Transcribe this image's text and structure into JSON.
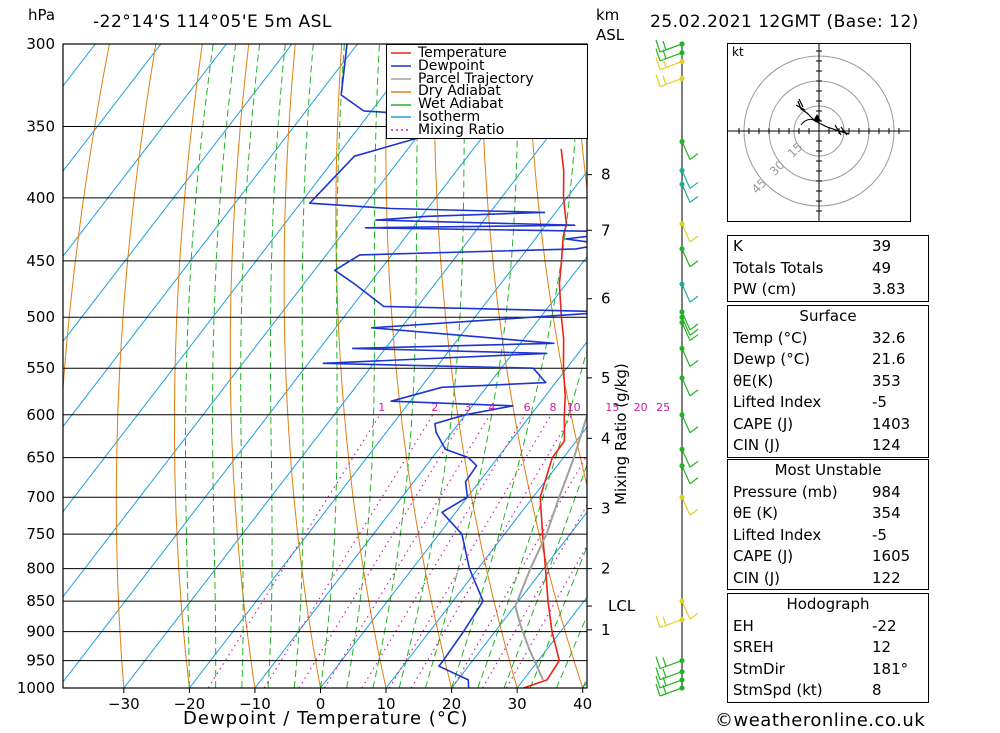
{
  "header": {
    "pressure_unit": "hPa",
    "location": "-22°14'S  114°05'E  5m  ASL",
    "km_label": "km",
    "asl_label": "ASL",
    "datetime": "25.02.2021  12GMT  (Base: 12)"
  },
  "chart_data": {
    "type": "line",
    "chart_kind": "skew-T log-P",
    "xlabel": "Dewpoint / Temperature (°C)",
    "ylabel_left": "hPa",
    "ylabel_right": "Mixing Ratio (g/kg)",
    "x_ticks": [
      -30,
      -20,
      -10,
      0,
      10,
      20,
      30,
      40
    ],
    "pressure_levels": [
      300,
      350,
      400,
      450,
      500,
      550,
      600,
      650,
      700,
      750,
      800,
      850,
      900,
      950,
      1000
    ],
    "height_ticks_km": [
      {
        "label": "8",
        "p": 383
      },
      {
        "label": "7",
        "p": 425
      },
      {
        "label": "6",
        "p": 483
      },
      {
        "label": "5",
        "p": 560
      },
      {
        "label": "4",
        "p": 627
      },
      {
        "label": "3",
        "p": 715
      },
      {
        "label": "2",
        "p": 800
      },
      {
        "label": "LCL",
        "p": 858
      },
      {
        "label": "1",
        "p": 897
      }
    ],
    "mixing_ratio_labels": [
      "1",
      "2",
      "3",
      "4",
      "6",
      "8",
      "10",
      "15",
      "20",
      "25"
    ],
    "mixing_ratio_values": [
      1,
      2,
      3,
      4,
      6,
      8,
      10,
      15,
      20,
      25
    ],
    "legend": [
      "Temperature",
      "Dewpoint",
      "Parcel Trajectory",
      "Dry Adiabat",
      "Wet Adiabat",
      "Isotherm",
      "Mixing Ratio"
    ],
    "legend_position": "top-right",
    "colors": {
      "temperature": "#e8241c",
      "dewpoint": "#1c34d2",
      "parcel": "#a0a0a0",
      "dry_adiabat": "#e07f10",
      "wet_adiabat": "#22b422",
      "isotherm": "#1e9ee0",
      "mixing_ratio": "#cc1fa0"
    },
    "series": [
      {
        "name": "Temperature",
        "points": [
          [
            1000,
            31.0
          ],
          [
            985,
            33.6
          ],
          [
            950,
            33.2
          ],
          [
            900,
            28.7
          ],
          [
            850,
            24.5
          ],
          [
            800,
            20.3
          ],
          [
            750,
            15.8
          ],
          [
            700,
            11.1
          ],
          [
            650,
            8.3
          ],
          [
            630,
            8.2
          ],
          [
            600,
            5.1
          ],
          [
            580,
            3.1
          ],
          [
            550,
            -0.5
          ],
          [
            520,
            -4.0
          ],
          [
            500,
            -6.8
          ],
          [
            470,
            -11.0
          ],
          [
            450,
            -13.4
          ],
          [
            430,
            -16.0
          ],
          [
            420,
            -17.0
          ],
          [
            400,
            -20.5
          ],
          [
            380,
            -23.7
          ],
          [
            365,
            -26.6
          ]
        ]
      },
      {
        "name": "Dewpoint",
        "points": [
          [
            1000,
            22.6
          ],
          [
            985,
            21.6
          ],
          [
            960,
            15.5
          ],
          [
            950,
            15.5
          ],
          [
            900,
            15.2
          ],
          [
            850,
            14.6
          ],
          [
            800,
            8.7
          ],
          [
            750,
            3.5
          ],
          [
            720,
            -2.1
          ],
          [
            700,
            0.0
          ],
          [
            680,
            -2.1
          ],
          [
            660,
            -2.3
          ],
          [
            650,
            -4.5
          ],
          [
            640,
            -9.0
          ],
          [
            620,
            -12.4
          ],
          [
            610,
            -13.6
          ],
          [
            600,
            -10.0
          ],
          [
            590,
            -3.8
          ],
          [
            585,
            -22.9
          ],
          [
            570,
            -16.8
          ],
          [
            565,
            -1.5
          ],
          [
            550,
            -5.1
          ],
          [
            545,
            -37.7
          ],
          [
            535,
            -4.8
          ],
          [
            530,
            -35.0
          ],
          [
            525,
            -4.9
          ],
          [
            510,
            -34.5
          ],
          [
            495,
            0.3
          ],
          [
            490,
            -35.2
          ],
          [
            470,
            -42.2
          ],
          [
            458,
            -46.9
          ],
          [
            445,
            -44.9
          ],
          [
            440,
            -12.6
          ],
          [
            436,
            -8.9
          ],
          [
            432,
            -15.3
          ],
          [
            430,
            -12.6
          ],
          [
            426,
            -8.9
          ],
          [
            423,
            -47.2
          ],
          [
            421,
            -15.6
          ],
          [
            417,
            -46.5
          ],
          [
            414,
            -39.0
          ],
          [
            411,
            -21.7
          ],
          [
            408,
            -45.6
          ],
          [
            404,
            -58.6
          ],
          [
            370,
            -57.3
          ],
          [
            345,
            -41.8
          ],
          [
            340,
            -61.2
          ],
          [
            330,
            -66.5
          ],
          [
            300,
            -71.6
          ]
        ]
      },
      {
        "name": "Parcel Trajectory",
        "points": [
          [
            985,
            33.0
          ],
          [
            930,
            27.3
          ],
          [
            890,
            23.2
          ],
          [
            858,
            20.1
          ],
          [
            800,
            18.0
          ],
          [
            750,
            16.4
          ],
          [
            700,
            14.0
          ],
          [
            650,
            11.6
          ],
          [
            600,
            8.6
          ],
          [
            550,
            5.3
          ],
          [
            500,
            1.5
          ],
          [
            450,
            -2.9
          ],
          [
            400,
            -8.8
          ],
          [
            370,
            -12.9
          ]
        ]
      }
    ],
    "wind_barbs": {
      "levels": [
        300,
        305,
        310,
        320,
        360,
        380,
        390,
        420,
        440,
        470,
        495,
        500,
        505,
        530,
        560,
        600,
        640,
        660,
        700,
        850,
        880,
        950,
        970,
        985,
        1000
      ],
      "note": "wind barbs along right-hand staff, colored by height"
    }
  },
  "hodograph": {
    "unit_label": "kt",
    "ring_labels": [
      "15",
      "30",
      "45"
    ]
  },
  "indices": {
    "rows": [
      {
        "label": "K",
        "value": "39"
      },
      {
        "label": "Totals Totals",
        "value": "49"
      },
      {
        "label": "PW (cm)",
        "value": "3.83"
      }
    ]
  },
  "surface": {
    "title": "Surface",
    "rows": [
      {
        "label": "Temp (°C)",
        "value": "32.6"
      },
      {
        "label": "Dewp (°C)",
        "value": "21.6"
      },
      {
        "label": "θE(K)",
        "value": "353"
      },
      {
        "label": "Lifted Index",
        "value": "-5"
      },
      {
        "label": "CAPE (J)",
        "value": "1403"
      },
      {
        "label": "CIN (J)",
        "value": "124"
      }
    ]
  },
  "most_unstable": {
    "title": "Most Unstable",
    "rows": [
      {
        "label": "Pressure (mb)",
        "value": "984"
      },
      {
        "label": "θE (K)",
        "value": "354"
      },
      {
        "label": "Lifted Index",
        "value": "-5"
      },
      {
        "label": "CAPE (J)",
        "value": "1605"
      },
      {
        "label": "CIN (J)",
        "value": "122"
      }
    ]
  },
  "hodograph_params": {
    "title": "Hodograph",
    "rows": [
      {
        "label": "EH",
        "value": "-22"
      },
      {
        "label": "SREH",
        "value": "12"
      },
      {
        "label": "StmDir",
        "value": "181°"
      },
      {
        "label": "StmSpd (kt)",
        "value": "8"
      }
    ]
  },
  "footer": {
    "copyright": "©weatheronline.co.uk"
  }
}
